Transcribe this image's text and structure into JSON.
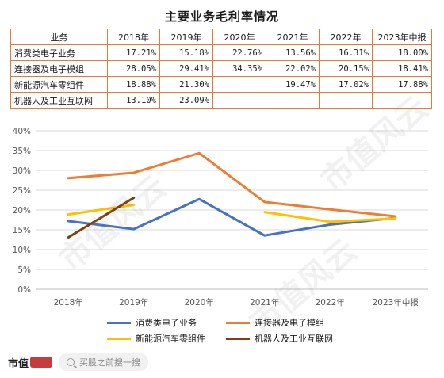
{
  "title": "主要业务毛利率情况",
  "table": {
    "header": [
      "业务",
      "2018年",
      "2019年",
      "2020年",
      "2021年",
      "2022年",
      "2023年中报"
    ],
    "rows": [
      [
        "消费类电子业务",
        "17.21%",
        "15.18%",
        "22.76%",
        "13.56%",
        "16.31%",
        "18.00%"
      ],
      [
        "连接器及电子模组",
        "28.05%",
        "29.41%",
        "34.35%",
        "22.02%",
        "20.15%",
        "18.41%"
      ],
      [
        "新能源汽车零组件",
        "18.88%",
        "21.30%",
        "",
        "19.47%",
        "17.02%",
        "17.88%"
      ],
      [
        "机器人及工业互联网",
        "13.10%",
        "23.09%",
        "",
        "",
        "",
        ""
      ]
    ]
  },
  "chart_data": {
    "type": "line",
    "categories": [
      "2018年",
      "2019年",
      "2020年",
      "2021年",
      "2022年",
      "2023年中报"
    ],
    "ylim": [
      0,
      40
    ],
    "yticks": [
      "0%",
      "5%",
      "10%",
      "15%",
      "20%",
      "25%",
      "30%",
      "35%",
      "40%"
    ],
    "grid": true,
    "legend_position": "bottom",
    "series": [
      {
        "name": "消费类电子业务",
        "color": "#4472c4",
        "values": [
          17.21,
          15.18,
          22.76,
          13.56,
          16.31,
          18.0
        ]
      },
      {
        "name": "连接器及电子模组",
        "color": "#ed7d31",
        "values": [
          28.05,
          29.41,
          34.35,
          22.02,
          20.15,
          18.41
        ]
      },
      {
        "name": "新能源汽车零组件",
        "color": "#ffc000",
        "values": [
          18.88,
          21.3,
          null,
          19.47,
          17.02,
          17.88
        ]
      },
      {
        "name": "机器人及工业互联网",
        "color": "#843c0c",
        "values": [
          13.1,
          23.09,
          null,
          null,
          null,
          null
        ]
      }
    ]
  },
  "footer": {
    "brand": "市值",
    "search_placeholder": "买股之前搜一搜"
  },
  "watermark_text": "市值风云"
}
